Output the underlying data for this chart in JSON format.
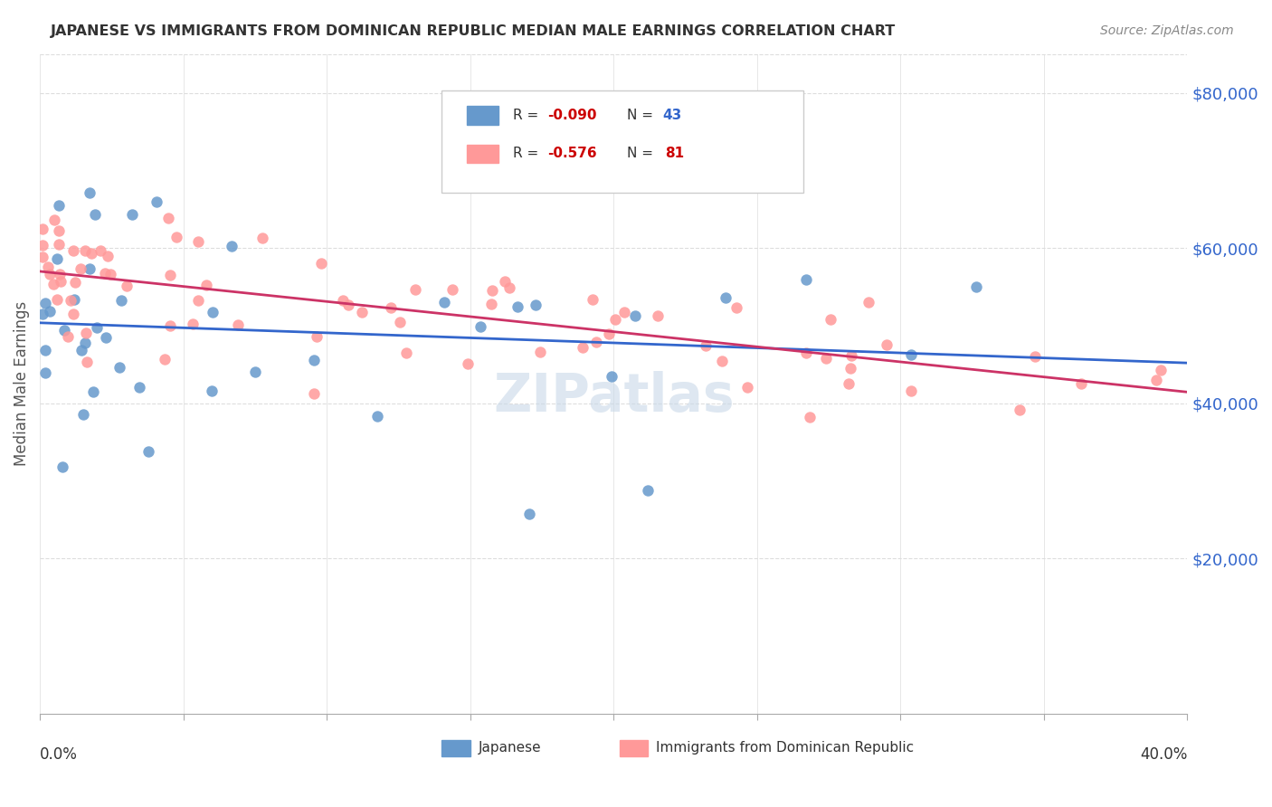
{
  "title": "JAPANESE VS IMMIGRANTS FROM DOMINICAN REPUBLIC MEDIAN MALE EARNINGS CORRELATION CHART",
  "source": "Source: ZipAtlas.com",
  "ylabel": "Median Male Earnings",
  "y_tick_labels": [
    "$80,000",
    "$60,000",
    "$40,000",
    "$20,000"
  ],
  "y_tick_values": [
    80000,
    60000,
    40000,
    20000
  ],
  "blue_color": "#6699cc",
  "pink_color": "#ff9999",
  "blue_line_color": "#3366cc",
  "pink_line_color": "#cc3366",
  "watermark": "ZIPatlas",
  "background_color": "#ffffff",
  "xmin": 0.0,
  "xmax": 0.4,
  "ymin": 0,
  "ymax": 85000,
  "grid_color": "#dddddd",
  "r_blue": "-0.090",
  "n_blue": "43",
  "r_pink": "-0.576",
  "n_pink": "81"
}
